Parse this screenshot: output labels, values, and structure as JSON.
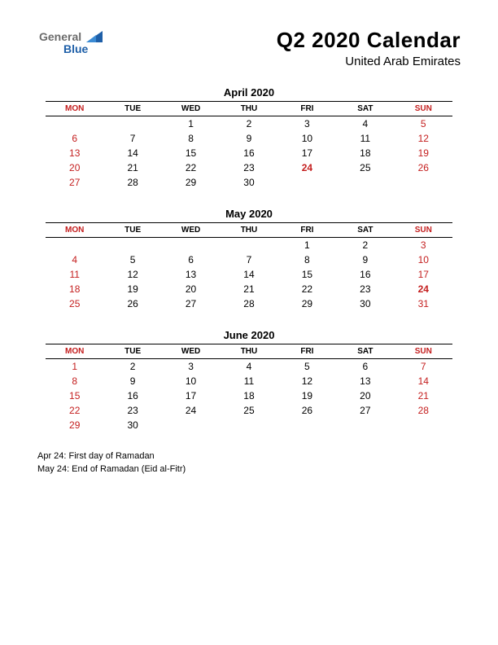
{
  "logo": {
    "line1": "General",
    "line2": "Blue"
  },
  "header": {
    "title": "Q2 2020 Calendar",
    "subtitle": "United Arab Emirates"
  },
  "colors": {
    "red": "#c41e1e",
    "text": "#000000",
    "bg": "#ffffff",
    "logo_gray": "#6b6b6b",
    "logo_blue": "#1e5fa8"
  },
  "day_headers": [
    "MON",
    "TUE",
    "WED",
    "THU",
    "FRI",
    "SAT",
    "SUN"
  ],
  "header_red_cols": [
    0,
    6
  ],
  "months": [
    {
      "title": "April 2020",
      "weeks": [
        [
          {
            "d": ""
          },
          {
            "d": ""
          },
          {
            "d": "1"
          },
          {
            "d": "2"
          },
          {
            "d": "3"
          },
          {
            "d": "4"
          },
          {
            "d": "5",
            "s": "red"
          }
        ],
        [
          {
            "d": "6",
            "s": "red"
          },
          {
            "d": "7"
          },
          {
            "d": "8"
          },
          {
            "d": "9"
          },
          {
            "d": "10"
          },
          {
            "d": "11"
          },
          {
            "d": "12",
            "s": "red"
          }
        ],
        [
          {
            "d": "13",
            "s": "red"
          },
          {
            "d": "14"
          },
          {
            "d": "15"
          },
          {
            "d": "16"
          },
          {
            "d": "17"
          },
          {
            "d": "18"
          },
          {
            "d": "19",
            "s": "red"
          }
        ],
        [
          {
            "d": "20",
            "s": "red"
          },
          {
            "d": "21"
          },
          {
            "d": "22"
          },
          {
            "d": "23"
          },
          {
            "d": "24",
            "s": "redbold"
          },
          {
            "d": "25"
          },
          {
            "d": "26",
            "s": "red"
          }
        ],
        [
          {
            "d": "27",
            "s": "red"
          },
          {
            "d": "28"
          },
          {
            "d": "29"
          },
          {
            "d": "30"
          },
          {
            "d": ""
          },
          {
            "d": ""
          },
          {
            "d": ""
          }
        ]
      ]
    },
    {
      "title": "May 2020",
      "weeks": [
        [
          {
            "d": ""
          },
          {
            "d": ""
          },
          {
            "d": ""
          },
          {
            "d": ""
          },
          {
            "d": "1"
          },
          {
            "d": "2"
          },
          {
            "d": "3",
            "s": "red"
          }
        ],
        [
          {
            "d": "4",
            "s": "red"
          },
          {
            "d": "5"
          },
          {
            "d": "6"
          },
          {
            "d": "7"
          },
          {
            "d": "8"
          },
          {
            "d": "9"
          },
          {
            "d": "10",
            "s": "red"
          }
        ],
        [
          {
            "d": "11",
            "s": "red"
          },
          {
            "d": "12"
          },
          {
            "d": "13"
          },
          {
            "d": "14"
          },
          {
            "d": "15"
          },
          {
            "d": "16"
          },
          {
            "d": "17",
            "s": "red"
          }
        ],
        [
          {
            "d": "18",
            "s": "red"
          },
          {
            "d": "19"
          },
          {
            "d": "20"
          },
          {
            "d": "21"
          },
          {
            "d": "22"
          },
          {
            "d": "23"
          },
          {
            "d": "24",
            "s": "redbold"
          }
        ],
        [
          {
            "d": "25",
            "s": "red"
          },
          {
            "d": "26"
          },
          {
            "d": "27"
          },
          {
            "d": "28"
          },
          {
            "d": "29"
          },
          {
            "d": "30"
          },
          {
            "d": "31",
            "s": "red"
          }
        ]
      ]
    },
    {
      "title": "June 2020",
      "weeks": [
        [
          {
            "d": "1",
            "s": "red"
          },
          {
            "d": "2"
          },
          {
            "d": "3"
          },
          {
            "d": "4"
          },
          {
            "d": "5"
          },
          {
            "d": "6"
          },
          {
            "d": "7",
            "s": "red"
          }
        ],
        [
          {
            "d": "8",
            "s": "red"
          },
          {
            "d": "9"
          },
          {
            "d": "10"
          },
          {
            "d": "11"
          },
          {
            "d": "12"
          },
          {
            "d": "13"
          },
          {
            "d": "14",
            "s": "red"
          }
        ],
        [
          {
            "d": "15",
            "s": "red"
          },
          {
            "d": "16"
          },
          {
            "d": "17"
          },
          {
            "d": "18"
          },
          {
            "d": "19"
          },
          {
            "d": "20"
          },
          {
            "d": "21",
            "s": "red"
          }
        ],
        [
          {
            "d": "22",
            "s": "red"
          },
          {
            "d": "23"
          },
          {
            "d": "24"
          },
          {
            "d": "25"
          },
          {
            "d": "26"
          },
          {
            "d": "27"
          },
          {
            "d": "28",
            "s": "red"
          }
        ],
        [
          {
            "d": "29",
            "s": "red"
          },
          {
            "d": "30"
          },
          {
            "d": ""
          },
          {
            "d": ""
          },
          {
            "d": ""
          },
          {
            "d": ""
          },
          {
            "d": ""
          }
        ]
      ]
    }
  ],
  "notes": [
    "Apr 24: First day of Ramadan",
    "May 24: End of Ramadan (Eid al-Fitr)"
  ]
}
